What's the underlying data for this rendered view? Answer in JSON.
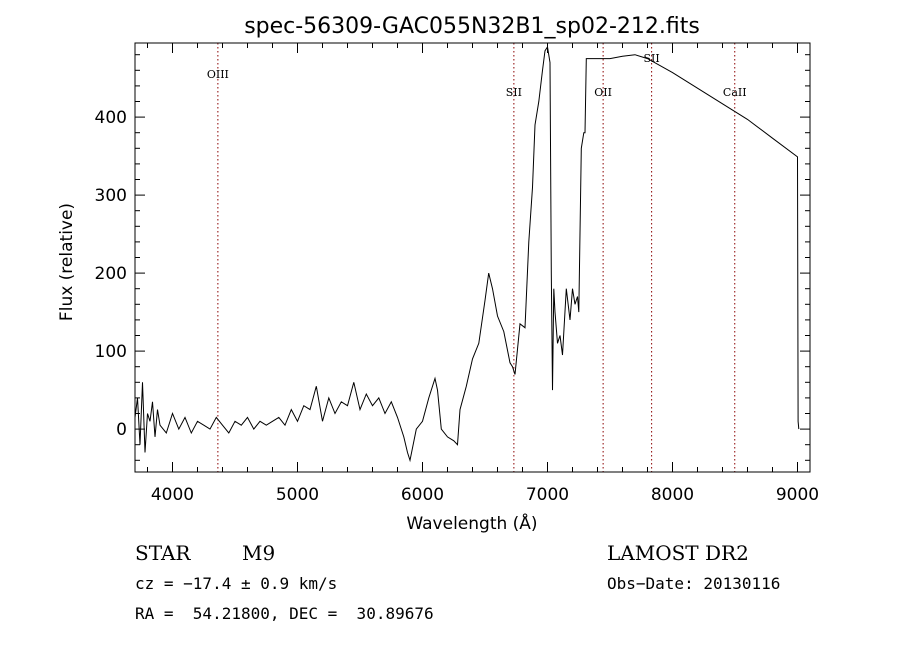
{
  "chart_data": {
    "type": "line",
    "title": "spec-56309-GAC055N32B1_sp02-212.fits",
    "xlabel": "Wavelength (Å)",
    "ylabel": "Flux (relative)",
    "xlim": [
      3700,
      9100
    ],
    "ylim": [
      -55,
      495
    ],
    "xticks": [
      4000,
      5000,
      6000,
      7000,
      8000,
      9000
    ],
    "xtick_labels": [
      "4000",
      "5000",
      "6000",
      "7000",
      "8000",
      "9000"
    ],
    "yticks": [
      0,
      100,
      200,
      300,
      400
    ],
    "ytick_labels": [
      "0",
      "100",
      "200",
      "300",
      "400"
    ],
    "grid": false,
    "line_color": "#000000",
    "marker_color": "#8b0000",
    "spectral_lines": [
      {
        "label": "OIII",
        "x": 4363
      },
      {
        "label": "SII",
        "x": 6731
      },
      {
        "label": "OII",
        "x": 7445
      },
      {
        "label": "SII",
        "x": 7833
      },
      {
        "label": "CaII",
        "x": 8498
      }
    ],
    "series": [
      {
        "x": [
          3700,
          3720,
          3740,
          3760,
          3780,
          3800,
          3820,
          3840,
          3860,
          3880,
          3900,
          3950,
          4000,
          4050,
          4100,
          4150,
          4200,
          4250,
          4300,
          4350,
          4400,
          4450,
          4500,
          4550,
          4600,
          4650,
          4700,
          4750,
          4800,
          4850,
          4900,
          4950,
          5000,
          5050,
          5100,
          5150,
          5200,
          5250,
          5300,
          5350,
          5400,
          5450,
          5500,
          5550,
          5600,
          5650,
          5700,
          5750,
          5800,
          5850,
          5880,
          5900,
          5950,
          6000,
          6050,
          6100,
          6120,
          6150,
          6200,
          6250,
          6280,
          6300,
          6350,
          6400,
          6450,
          6500,
          6530,
          6560,
          6600,
          6650,
          6700,
          6720,
          6740,
          6780,
          6820,
          6850,
          6880,
          6900,
          6930,
          6960,
          6980,
          7000,
          7020,
          7030,
          7040,
          7050,
          7060,
          7080,
          7100,
          7120,
          7150,
          7180,
          7200,
          7220,
          7240,
          7250,
          7270,
          7290,
          7300,
          7310,
          7350,
          7500,
          7600,
          7700,
          7800,
          8000,
          8200,
          8400,
          8600,
          8800,
          9000,
          9005,
          9010
        ],
        "y": [
          15,
          40,
          -20,
          60,
          -30,
          20,
          10,
          35,
          -10,
          25,
          5,
          -5,
          20,
          0,
          15,
          -5,
          10,
          5,
          0,
          15,
          5,
          -5,
          10,
          5,
          15,
          0,
          10,
          5,
          10,
          15,
          5,
          25,
          10,
          30,
          25,
          55,
          10,
          40,
          20,
          35,
          30,
          60,
          25,
          45,
          30,
          40,
          20,
          35,
          15,
          -10,
          -30,
          -40,
          0,
          10,
          40,
          65,
          50,
          0,
          -10,
          -15,
          -20,
          25,
          55,
          90,
          110,
          165,
          200,
          180,
          145,
          125,
          85,
          80,
          70,
          135,
          130,
          240,
          310,
          390,
          420,
          460,
          485,
          490,
          470,
          200,
          50,
          180,
          150,
          110,
          120,
          95,
          180,
          140,
          180,
          160,
          170,
          150,
          360,
          380,
          380,
          475,
          475,
          475,
          478,
          480,
          475,
          457,
          437,
          417,
          397,
          373,
          349,
          10,
          0
        ]
      }
    ]
  },
  "info": {
    "object_type": "STAR",
    "subclass": "M9",
    "cz": "cz = −17.4 ± 0.9 km/s",
    "coords": "RA =  54.21800, DEC =  30.89676",
    "survey": "LAMOST DR2",
    "obs_date": "Obs−Date: 20130116"
  }
}
